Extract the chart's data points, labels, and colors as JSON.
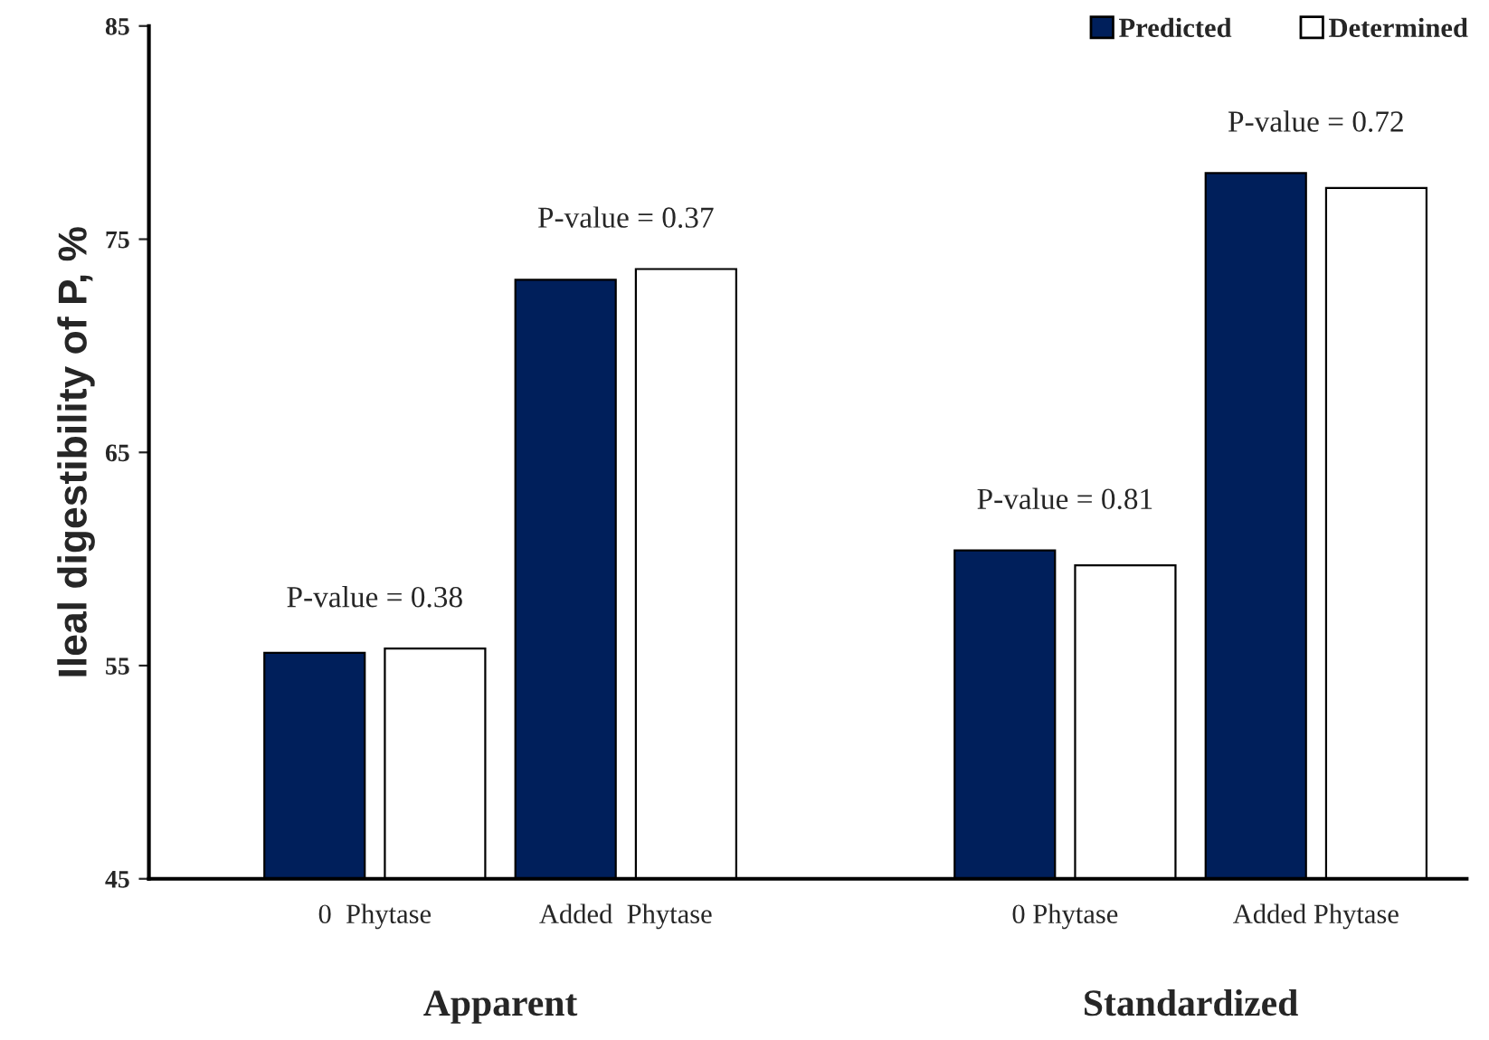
{
  "chart_data": {
    "type": "bar",
    "ylabel": "Ileal digestibility of P, %",
    "categories": [
      "0  Phytase",
      "Added  Phytase",
      "0 Phytase",
      "Added Phytase"
    ],
    "series": [
      {
        "name": "Predicted",
        "color": "#001f5b",
        "values": [
          55.6,
          73.1,
          60.4,
          78.1
        ]
      },
      {
        "name": "Determined",
        "color": "#ffffff",
        "values": [
          55.8,
          73.6,
          59.7,
          77.4
        ]
      }
    ],
    "ylim": [
      45,
      85
    ],
    "yticks": [
      45,
      55,
      65,
      75,
      85
    ],
    "grid": false,
    "legend": "top right",
    "annotations": [
      "P-value = 0.38",
      "P-value = 0.37",
      "P-value = 0.81",
      "P-value = 0.72",
      "Apparent",
      "Standardized"
    ]
  }
}
